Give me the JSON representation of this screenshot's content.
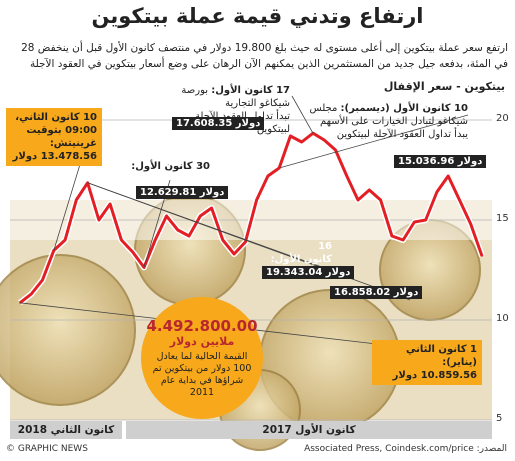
{
  "title": "ارتفاع وتدني قيمة عملة بيتكوين",
  "intro": "ارتفع سعر عملة بيتكوين إلى أعلى مستوى له حيث بلغ 19.800 دولار في منتصف كانون الأول قبل أن ينخفض 28 في المئة، بدفعه جيل جديد من المستثمرين الذين يمكنهم الآن الرهان على وضع أسعار بيتكوين في العقود الآجلة",
  "series_label": "بيتكوين - سعر الإقفال",
  "annotations": {
    "jan10": {
      "line1": "10 كانون الثاني،",
      "line2": "09:00 بتوقيت",
      "line3": "غرينيتش:",
      "value": "13.478.56 دولار"
    },
    "dec30": {
      "line1": "30 كانون الأول:",
      "value": "12.629.81 دولار"
    },
    "dec17": {
      "head": "17 كانون الأول:",
      "body1": "بورصة شيكاغو التجارية",
      "body2": "تبدأ تداول العقود الآجلة لبيتكوين",
      "value": "17.608.35 دولار"
    },
    "dec10": {
      "head": "10 كانون الأول (ديسمبر):",
      "body1": "مجلس",
      "body2": "شيكاغو لتبادل الخيارات على الأسهم",
      "body3": "يبدأ تداول العقود الآجلة لبيتكوين",
      "value": "15.036.96 دولار"
    },
    "dec16": {
      "line1": "16",
      "line2": "كانون الأول:",
      "value": "19.343.04 دولار"
    },
    "dec16b": {
      "value": "16.858.02 دولار"
    },
    "jan1": {
      "line1": "1 كانون الثاني (يناير):",
      "value": "10.859.56 دولار"
    }
  },
  "circle": {
    "value": "4.492.800.00",
    "unit": "ملايين دولار",
    "desc": "القيمة الحالية لما يعادل 100 دولار من بيتكوين تم شراؤها في بداية عام 2011"
  },
  "axis": {
    "band_2017": "كانون الأول 2017",
    "band_2018": "كانون الثاني 2018"
  },
  "footer": {
    "source": "المصدر: Associated Press, Coindesk.com/price",
    "credit": "© GRAPHIC NEWS"
  },
  "colors": {
    "line": "#e31e24",
    "orange": "#f7a81b",
    "dark": "#222222"
  },
  "chart_data": {
    "type": "line",
    "title": "بيتكوين - سعر الإقفال",
    "ylim": [
      5,
      21
    ],
    "yticks": [
      5,
      10,
      15,
      20
    ],
    "x": [
      "كانون الأول 2017",
      "",
      "",
      "",
      "",
      "",
      "",
      "",
      "",
      "",
      "",
      "",
      "",
      "",
      "",
      "",
      "",
      "",
      "",
      "",
      "",
      "",
      "",
      "",
      "",
      "",
      "",
      "",
      "",
      "",
      "",
      "كانون الثاني 2018",
      "",
      "",
      "",
      "",
      "",
      "",
      "",
      "",
      "",
      ""
    ],
    "values": [
      13.2,
      14.8,
      16.0,
      17.2,
      16.4,
      15.0,
      14.9,
      14.0,
      14.2,
      16.0,
      16.5,
      16.0,
      17.2,
      18.5,
      19.0,
      19.34,
      18.9,
      19.2,
      17.6,
      17.2,
      16.0,
      13.9,
      13.3,
      14.0,
      15.6,
      15.2,
      14.2,
      14.5,
      15.2,
      14.0,
      12.63,
      13.4,
      14.0,
      15.8,
      15.0,
      16.86,
      16.0,
      14.0,
      13.48,
      12.0,
      11.3,
      10.86
    ],
    "grid": true
  }
}
